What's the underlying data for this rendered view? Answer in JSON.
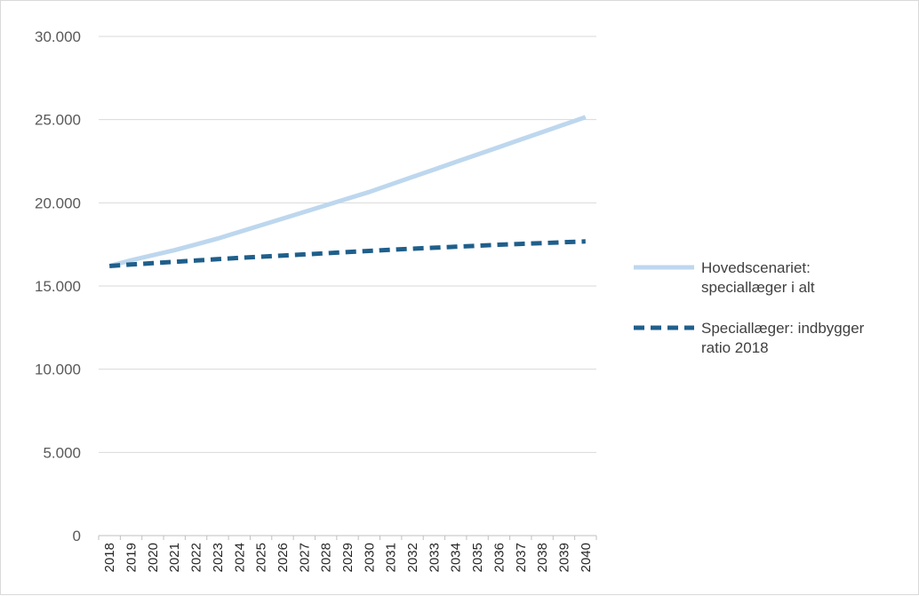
{
  "chart_data": {
    "type": "line",
    "title": "",
    "xlabel": "",
    "ylabel": "",
    "categories": [
      "2018",
      "2019",
      "2020",
      "2021",
      "2022",
      "2023",
      "2024",
      "2025",
      "2026",
      "2027",
      "2028",
      "2029",
      "2030",
      "2031",
      "2032",
      "2033",
      "2034",
      "2035",
      "2036",
      "2037",
      "2038",
      "2039",
      "2040"
    ],
    "ylim": [
      0,
      30000
    ],
    "y_ticks": [
      0,
      5000,
      10000,
      15000,
      20000,
      25000,
      30000
    ],
    "y_tick_labels": [
      "0",
      "5.000",
      "10.000",
      "15.000",
      "20.000",
      "25.000",
      "30.000"
    ],
    "grid": true,
    "legend_position": "right",
    "series": [
      {
        "name": "Hovedscenariet: speciallæger i alt",
        "name_lines": [
          "Hovedscenariet:",
          "speciallæger i alt"
        ],
        "color": "#bdd7ee",
        "style": "solid",
        "values": [
          16200,
          16550,
          16850,
          17150,
          17500,
          17850,
          18250,
          18650,
          19050,
          19450,
          19850,
          20250,
          20650,
          21100,
          21550,
          22000,
          22450,
          22900,
          23350,
          23800,
          24250,
          24700,
          25150
        ]
      },
      {
        "name": "Speciallæger: indbygger ratio 2018",
        "name_lines": [
          "Speciallæger: indbygger",
          "ratio 2018"
        ],
        "color": "#1f5f8b",
        "style": "dashed",
        "values": [
          16200,
          16290,
          16370,
          16450,
          16530,
          16610,
          16690,
          16760,
          16830,
          16900,
          16970,
          17040,
          17110,
          17180,
          17240,
          17300,
          17360,
          17420,
          17480,
          17530,
          17580,
          17630,
          17680
        ]
      }
    ]
  }
}
